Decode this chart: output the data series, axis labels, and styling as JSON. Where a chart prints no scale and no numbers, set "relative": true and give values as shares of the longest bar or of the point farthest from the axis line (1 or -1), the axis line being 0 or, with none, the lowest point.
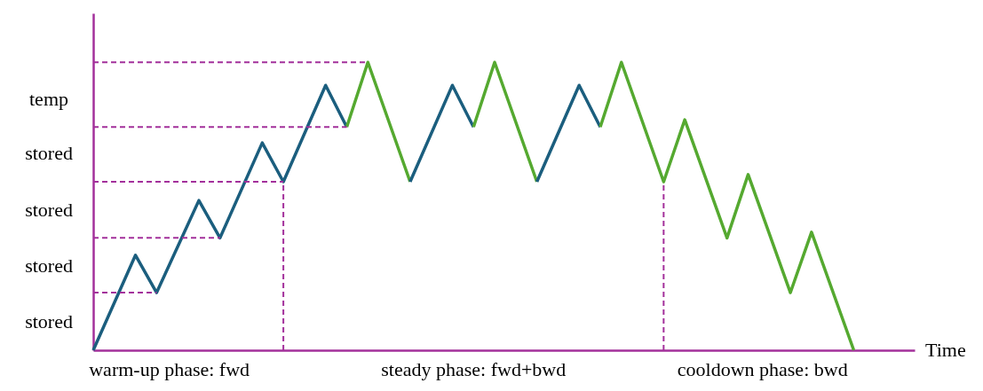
{
  "chart_data": {
    "type": "line",
    "relative": true,
    "xlabel": "Time",
    "line_style": "solid",
    "categories": [
      null,
      null,
      null,
      null,
      null,
      null,
      null,
      null,
      null,
      null,
      null,
      null,
      null,
      null,
      null,
      null,
      null,
      null,
      null,
      null,
      null,
      null,
      null,
      null,
      null,
      null,
      null,
      null,
      null,
      null,
      null,
      null,
      null,
      null,
      null,
      null,
      null
    ],
    "series": [
      {
        "color": "#1b5e7e",
        "values": [
          0,
          null,
          0.33,
          0.2,
          null,
          0.52,
          0.39,
          null,
          0.72,
          0.585,
          null,
          0.92,
          0.775,
          null,
          null,
          null,
          null,
          null,
          null,
          null,
          null,
          null,
          null,
          null,
          null,
          null,
          null,
          null,
          null,
          null,
          null,
          null,
          null,
          null,
          null,
          null,
          null
        ]
      },
      {
        "color": "#55a930",
        "values": [
          null,
          null,
          null,
          null,
          null,
          null,
          null,
          null,
          null,
          null,
          null,
          null,
          0.775,
          1,
          null,
          0.585,
          null,
          null,
          null,
          null,
          null,
          null,
          null,
          null,
          null,
          null,
          null,
          null,
          null,
          null,
          null,
          null,
          null,
          null,
          null,
          null,
          null
        ]
      },
      {
        "color": "#1b5e7e",
        "values": [
          null,
          null,
          null,
          null,
          null,
          null,
          null,
          null,
          null,
          null,
          null,
          null,
          null,
          null,
          null,
          0.585,
          null,
          0.92,
          0.775,
          null,
          null,
          null,
          null,
          null,
          null,
          null,
          null,
          null,
          null,
          null,
          null,
          null,
          null,
          null,
          null,
          null,
          null
        ]
      },
      {
        "color": "#55a930",
        "values": [
          null,
          null,
          null,
          null,
          null,
          null,
          null,
          null,
          null,
          null,
          null,
          null,
          null,
          null,
          null,
          null,
          null,
          null,
          0.775,
          1,
          null,
          0.585,
          null,
          null,
          null,
          null,
          null,
          null,
          null,
          null,
          null,
          null,
          null,
          null,
          null,
          null,
          null
        ]
      },
      {
        "color": "#1b5e7e",
        "values": [
          null,
          null,
          null,
          null,
          null,
          null,
          null,
          null,
          null,
          null,
          null,
          null,
          null,
          null,
          null,
          null,
          null,
          null,
          null,
          null,
          null,
          0.585,
          null,
          0.92,
          0.775,
          null,
          null,
          null,
          null,
          null,
          null,
          null,
          null,
          null,
          null,
          null,
          null
        ]
      },
      {
        "color": "#55a930",
        "values": [
          null,
          null,
          null,
          null,
          null,
          null,
          null,
          null,
          null,
          null,
          null,
          null,
          null,
          null,
          null,
          null,
          null,
          null,
          null,
          null,
          null,
          null,
          null,
          null,
          0.775,
          1,
          null,
          0.585,
          0.8,
          null,
          0.39,
          0.61,
          null,
          0.2,
          0.41,
          null,
          0
        ]
      },
      {
        "color": "#a3309b",
        "line_style": "dashed",
        "values": [
          0.2,
          null,
          null,
          0.2,
          null,
          null,
          null,
          null,
          null,
          null,
          null,
          null,
          null,
          null,
          null,
          null,
          null,
          null,
          null,
          null,
          null,
          null,
          null,
          null,
          null,
          null,
          null,
          null,
          null,
          null,
          null,
          null,
          null,
          null,
          null,
          null,
          null
        ]
      },
      {
        "color": "#a3309b",
        "line_style": "dashed",
        "values": [
          0.39,
          null,
          null,
          null,
          null,
          null,
          0.39,
          null,
          null,
          null,
          null,
          null,
          null,
          null,
          null,
          null,
          null,
          null,
          null,
          null,
          null,
          null,
          null,
          null,
          null,
          null,
          null,
          null,
          null,
          null,
          null,
          null,
          null,
          null,
          null,
          null,
          null
        ]
      },
      {
        "color": "#a3309b",
        "line_style": "dashed",
        "values": [
          0.585,
          null,
          null,
          null,
          null,
          null,
          null,
          null,
          null,
          0.585,
          null,
          null,
          null,
          null,
          null,
          null,
          null,
          null,
          null,
          null,
          null,
          null,
          null,
          null,
          null,
          null,
          null,
          null,
          null,
          null,
          null,
          null,
          null,
          null,
          null,
          null,
          null
        ]
      },
      {
        "color": "#a3309b",
        "line_style": "dashed",
        "values": [
          0.775,
          null,
          null,
          null,
          null,
          null,
          null,
          null,
          null,
          null,
          null,
          null,
          0.775,
          null,
          null,
          null,
          null,
          null,
          null,
          null,
          null,
          null,
          null,
          null,
          null,
          null,
          null,
          null,
          null,
          null,
          null,
          null,
          null,
          null,
          null,
          null,
          null
        ]
      },
      {
        "color": "#a3309b",
        "line_style": "dashed",
        "values": [
          1,
          null,
          null,
          null,
          null,
          null,
          null,
          null,
          null,
          null,
          null,
          null,
          null,
          1,
          null,
          null,
          null,
          null,
          null,
          null,
          null,
          null,
          null,
          null,
          null,
          null,
          null,
          null,
          null,
          null,
          null,
          null,
          null,
          null,
          null,
          null,
          null
        ]
      }
    ],
    "annotations": [
      "stored",
      "stored",
      "stored",
      "stored",
      "temp",
      "warm-up phase: fwd",
      "steady phase: fwd+bwd",
      "cooldown phase: bwd"
    ]
  }
}
